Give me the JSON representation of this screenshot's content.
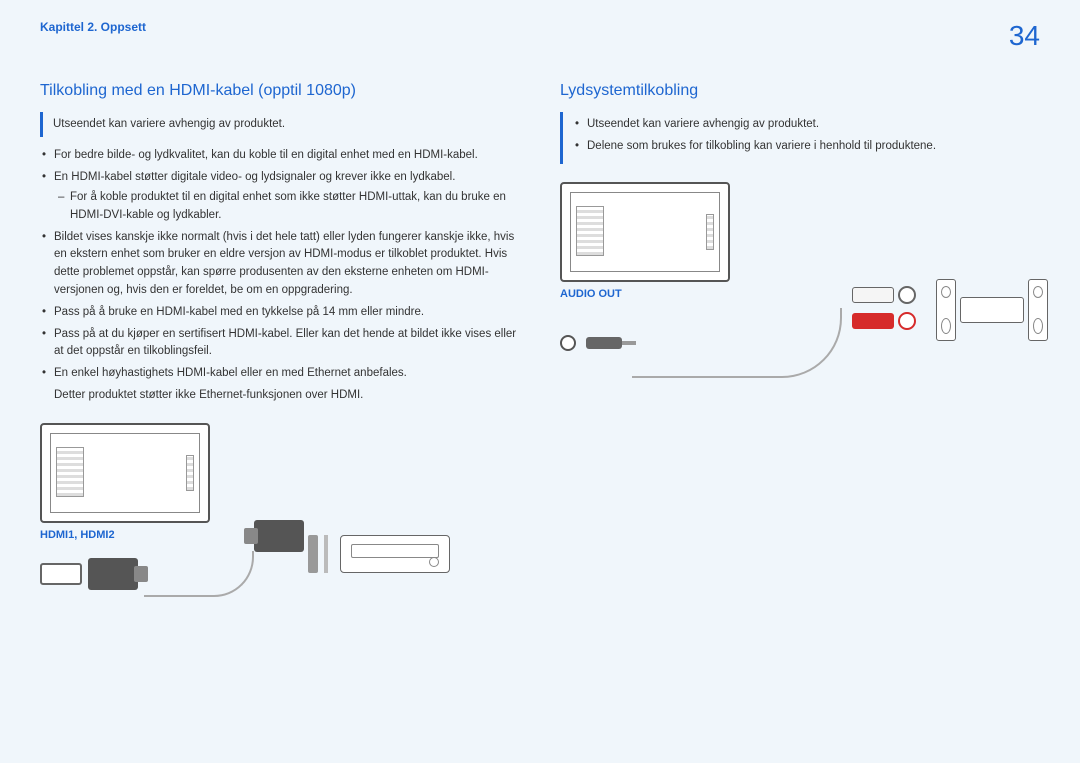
{
  "header": {
    "chapter": "Kapittel 2. Oppsett",
    "page_number": "34"
  },
  "left": {
    "title": "Tilkobling med en HDMI-kabel (opptil 1080p)",
    "note": "Utseendet kan variere avhengig av produktet.",
    "bullets": [
      "For bedre bilde- og lydkvalitet, kan du koble til en digital enhet med en HDMI-kabel.",
      "En HDMI-kabel støtter digitale video- og lydsignaler og krever ikke en lydkabel.",
      "Bildet vises kanskje ikke normalt (hvis i det hele tatt) eller lyden fungerer kanskje ikke, hvis en ekstern enhet som bruker en eldre versjon av HDMI-modus er tilkoblet produktet. Hvis dette problemet oppstår, kan spørre produsenten av den eksterne enheten om HDMI-versjonen og, hvis den er foreldet, be om en oppgradering.",
      "Pass på å bruke en HDMI-kabel med en tykkelse på 14 mm eller mindre.",
      "Pass på at du kjøper en sertifisert HDMI-kabel. Eller kan det hende at bildet ikke vises eller at det oppstår en tilkoblingsfeil.",
      "En enkel høyhastighets HDMI-kabel eller en med Ethernet anbefales."
    ],
    "sub_bullet": "For å koble produktet til en digital enhet som ikke støtter HDMI-uttak, kan du bruke en HDMI-DVI-kable og lydkabler.",
    "trailing_line": "Detter produktet støtter ikke Ethernet-funksjonen over HDMI.",
    "port_label": "HDMI1, HDMI2"
  },
  "right": {
    "title": "Lydsystemtilkobling",
    "note_lines": [
      "Utseendet kan variere avhengig av produktet.",
      "Delene som brukes for tilkobling kan variere i henhold til produktene."
    ],
    "port_label": "AUDIO OUT"
  },
  "colors": {
    "accent": "#1e66d0",
    "text": "#333333",
    "background": "#f0f6fb",
    "rca_red": "#d62b2b"
  }
}
